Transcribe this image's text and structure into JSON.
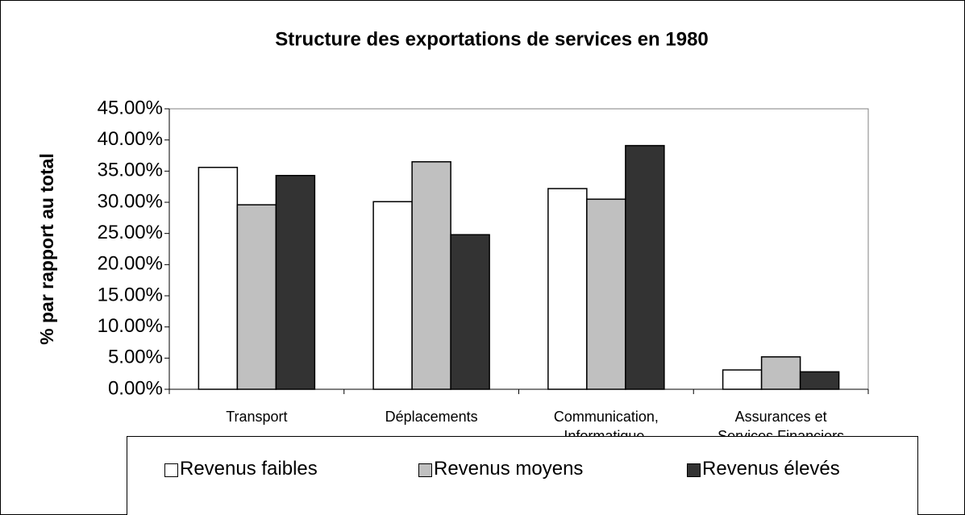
{
  "chart_data": {
    "type": "bar",
    "title": "Structure des exportations de services en 1980",
    "y_label": "% par rapport au total",
    "categories": [
      "Transport",
      "Déplacements",
      "Communication,\nInformatique,\ninformation, etc…",
      "Assurances et\nServices Financiers"
    ],
    "series": [
      {
        "name": "Revenus faibles",
        "color": "#ffffff",
        "values": [
          35.6,
          30.1,
          32.2,
          3.1
        ]
      },
      {
        "name": "Revenus moyens",
        "color": "#c0c0c0",
        "values": [
          29.6,
          36.5,
          30.5,
          5.2
        ]
      },
      {
        "name": "Revenus élevés",
        "color": "#333333",
        "values": [
          34.3,
          24.8,
          39.1,
          2.8
        ]
      }
    ],
    "ylim": [
      0,
      45
    ],
    "yticks": [
      {
        "value": 0,
        "label": "0.00%"
      },
      {
        "value": 5,
        "label": "5.00%"
      },
      {
        "value": 10,
        "label": "10.00%"
      },
      {
        "value": 15,
        "label": "15.00%"
      },
      {
        "value": 20,
        "label": "20.00%"
      },
      {
        "value": 25,
        "label": "25.00%"
      },
      {
        "value": 30,
        "label": "30.00%"
      },
      {
        "value": 35,
        "label": "35.00%"
      },
      {
        "value": 40,
        "label": "40.00%"
      },
      {
        "value": 45,
        "label": "45.00%"
      }
    ],
    "grid": false,
    "legend": "bottom"
  }
}
